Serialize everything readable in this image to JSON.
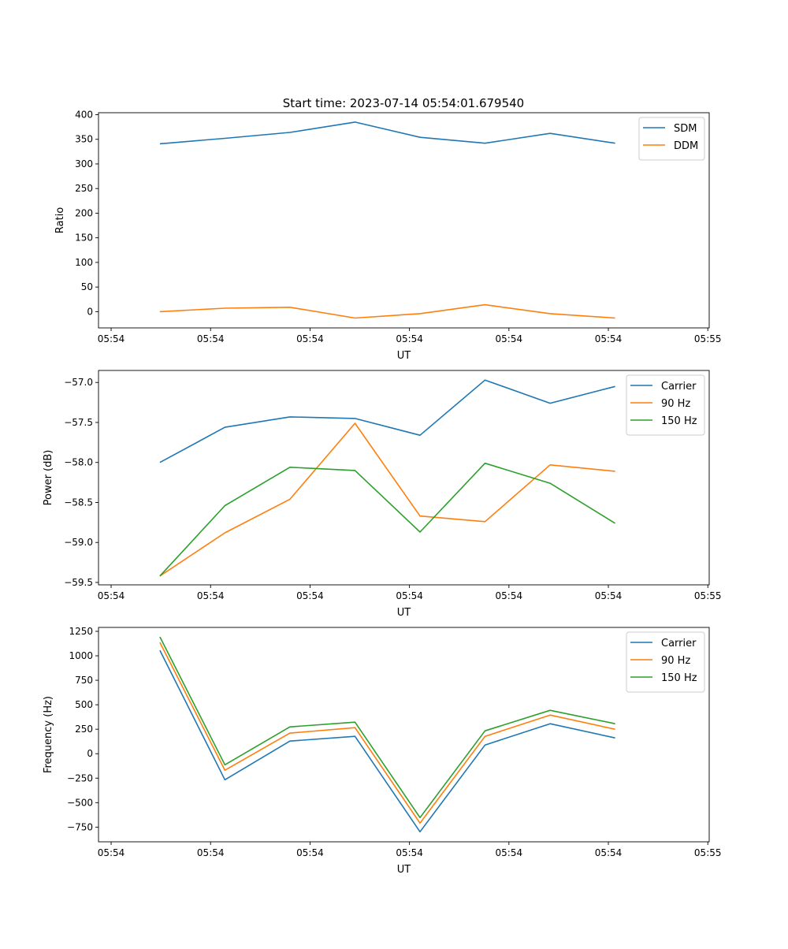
{
  "title": "Start time: 2023-07-14 05:54:01.679540",
  "chart_data": [
    {
      "type": "line",
      "xlabel": "UT",
      "ylabel": "Ratio",
      "x": [
        0.49,
        1.144,
        1.798,
        2.452,
        3.106,
        3.76,
        4.414,
        5.068
      ],
      "xlim": [
        -0.127,
        6.014
      ],
      "xticks": [
        0,
        1,
        2,
        3,
        4,
        5,
        6
      ],
      "xtick_labels": [
        "05:54",
        "05:54",
        "05:54",
        "05:54",
        "05:54",
        "05:54",
        "05:55"
      ],
      "ylim": [
        -33,
        404
      ],
      "yticks": [
        0,
        50,
        100,
        150,
        200,
        250,
        300,
        350,
        400
      ],
      "ytick_labels": [
        "0",
        "50",
        "100",
        "150",
        "200",
        "250",
        "300",
        "350",
        "400"
      ],
      "legend": "top-right",
      "series": [
        {
          "name": "SDM",
          "color": "#1f77b4",
          "values": [
            341,
            352,
            364,
            385,
            354,
            342,
            362,
            342
          ]
        },
        {
          "name": "DDM",
          "color": "#ff7f0e",
          "values": [
            0,
            7,
            9,
            -13,
            -4,
            14,
            -4,
            -13
          ]
        }
      ]
    },
    {
      "type": "line",
      "xlabel": "UT",
      "ylabel": "Power (dB)",
      "x": [
        0.49,
        1.144,
        1.798,
        2.452,
        3.106,
        3.76,
        4.414,
        5.068
      ],
      "xlim": [
        -0.127,
        6.014
      ],
      "xticks": [
        0,
        1,
        2,
        3,
        4,
        5,
        6
      ],
      "xtick_labels": [
        "05:54",
        "05:54",
        "05:54",
        "05:54",
        "05:54",
        "05:54",
        "05:55"
      ],
      "ylim": [
        -59.53,
        -56.85
      ],
      "yticks": [
        -59.5,
        -59.0,
        -58.5,
        -58.0,
        -57.5,
        -57.0
      ],
      "ytick_labels": [
        "−59.5",
        "−59.0",
        "−58.5",
        "−58.0",
        "−57.5",
        "−57.0"
      ],
      "legend": "top-right",
      "series": [
        {
          "name": "Carrier",
          "color": "#1f77b4",
          "values": [
            -58.0,
            -57.56,
            -57.43,
            -57.45,
            -57.66,
            -56.97,
            -57.26,
            -57.05
          ]
        },
        {
          "name": "90 Hz",
          "color": "#ff7f0e",
          "values": [
            -59.42,
            -58.88,
            -58.46,
            -57.51,
            -58.67,
            -58.74,
            -58.03,
            -58.11
          ]
        },
        {
          "name": "150 Hz",
          "color": "#2ca02c",
          "values": [
            -59.42,
            -58.54,
            -58.06,
            -58.1,
            -58.87,
            -58.01,
            -58.26,
            -58.76
          ]
        }
      ]
    },
    {
      "type": "line",
      "xlabel": "UT",
      "ylabel": "Frequency (Hz)",
      "x": [
        0.49,
        1.144,
        1.798,
        2.452,
        3.106,
        3.76,
        4.414,
        5.068
      ],
      "xlim": [
        -0.127,
        6.014
      ],
      "xticks": [
        0,
        1,
        2,
        3,
        4,
        5,
        6
      ],
      "xtick_labels": [
        "05:54",
        "05:54",
        "05:54",
        "05:54",
        "05:54",
        "05:54",
        "05:55"
      ],
      "ylim": [
        -900,
        1290
      ],
      "yticks": [
        -750,
        -500,
        -250,
        0,
        250,
        500,
        750,
        1000,
        1250
      ],
      "ytick_labels": [
        "−750",
        "−500",
        "−250",
        "0",
        "250",
        "500",
        "750",
        "1000",
        "1250"
      ],
      "legend": "top-right",
      "series": [
        {
          "name": "Carrier",
          "color": "#1f77b4",
          "values": [
            1056,
            -266,
            129,
            177,
            -798,
            89,
            306,
            161
          ]
        },
        {
          "name": "90 Hz",
          "color": "#ff7f0e",
          "values": [
            1137,
            -169,
            210,
            266,
            -709,
            177,
            395,
            250
          ]
        },
        {
          "name": "150 Hz",
          "color": "#2ca02c",
          "values": [
            1193,
            -113,
            274,
            322,
            -653,
            234,
            443,
            306
          ]
        }
      ]
    }
  ]
}
